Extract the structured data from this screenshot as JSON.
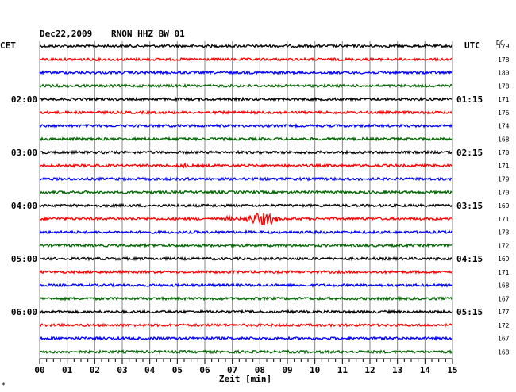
{
  "header": {
    "date": "Dec22,2009",
    "station": "RNON HHZ BW 01"
  },
  "left_zone": "CET",
  "right_zone": "UTC",
  "dc_label": "DC",
  "corner_mark": "*",
  "chart_data": {
    "type": "line",
    "title": "Dec22,2009   RNON HHZ BW 01",
    "xlabel": "Zeit [min]",
    "xlim": [
      0,
      15
    ],
    "x_ticks": [
      "00",
      "01",
      "02",
      "03",
      "04",
      "05",
      "06",
      "07",
      "08",
      "09",
      "10",
      "11",
      "12",
      "13",
      "14",
      "15"
    ],
    "traces_per_hour": 4,
    "trace_count": 24,
    "trace_colors": [
      "#000000",
      "#ff0000",
      "#0000ff",
      "#006600"
    ],
    "left_hour_labels": [
      {
        "row": 4,
        "text": "02:00"
      },
      {
        "row": 8,
        "text": "03:00"
      },
      {
        "row": 12,
        "text": "04:00"
      },
      {
        "row": 16,
        "text": "05:00"
      },
      {
        "row": 20,
        "text": "06:00"
      }
    ],
    "right_hour_labels": [
      {
        "row": 4,
        "text": "01:15"
      },
      {
        "row": 8,
        "text": "02:15"
      },
      {
        "row": 12,
        "text": "03:15"
      },
      {
        "row": 16,
        "text": "04:15"
      },
      {
        "row": 20,
        "text": "05:15"
      }
    ],
    "dc_offsets": [
      "179",
      "178",
      "180",
      "178",
      "171",
      "176",
      "174",
      "168",
      "170",
      "171",
      "179",
      "170",
      "169",
      "171",
      "173",
      "172",
      "169",
      "171",
      "168",
      "167",
      "177",
      "172",
      "167",
      "168"
    ],
    "events": [
      {
        "row": 13,
        "start_min": 6.8,
        "end_min": 8.7,
        "peak_min": 8.1,
        "amplitude": "large"
      },
      {
        "row": 13,
        "start_min": 6.7,
        "end_min": 7.0,
        "peak_min": 6.85,
        "amplitude": "small"
      },
      {
        "row": 9,
        "start_min": 5.0,
        "end_min": 5.4,
        "peak_min": 5.2,
        "amplitude": "small"
      }
    ],
    "grid": true
  }
}
